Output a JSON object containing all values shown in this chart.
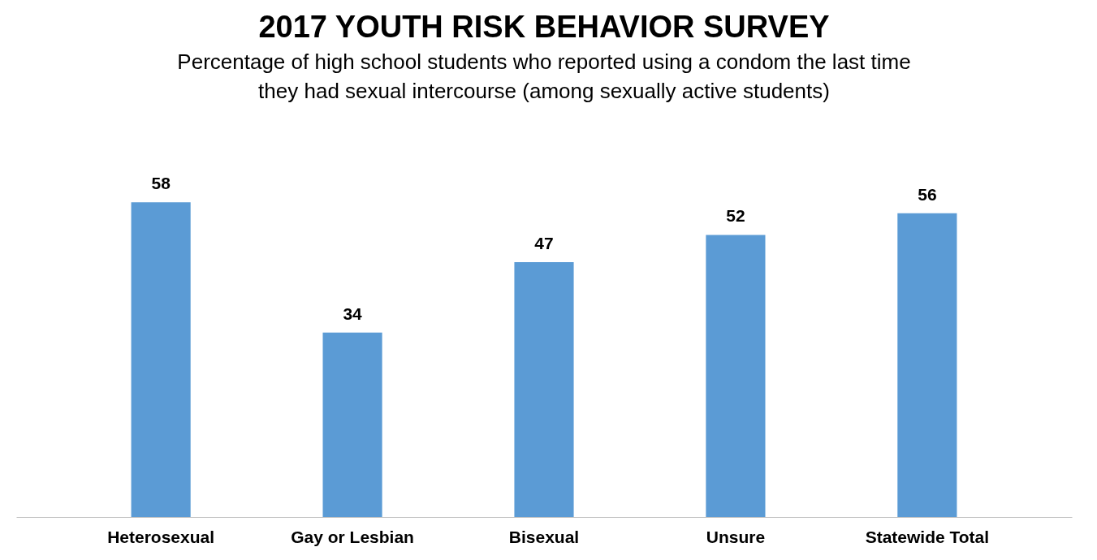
{
  "chart_data": {
    "type": "bar",
    "title": "2017 YOUTH RISK BEHAVIOR SURVEY",
    "subtitle": "Percentage of high school students who reported using a condom the last time\nthey had sexual intercourse (among sexually active students)",
    "categories": [
      "Heterosexual",
      "Gay or Lesbian",
      "Bisexual",
      "Unsure",
      "Statewide Total"
    ],
    "values": [
      58,
      34,
      47,
      52,
      56
    ],
    "color": "#5b9bd5",
    "data_labels": true,
    "tick_labels": "x"
  }
}
